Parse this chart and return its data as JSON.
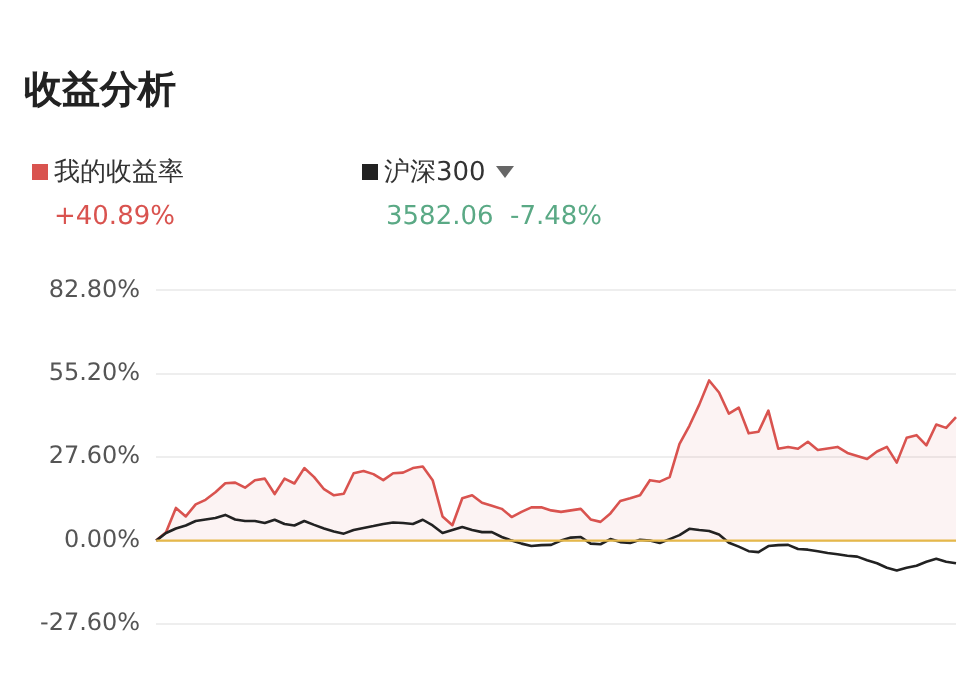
{
  "chart_data": {
    "type": "line",
    "title": "收益分析",
    "categories": [
      null,
      null,
      null,
      null,
      null,
      null,
      null,
      null,
      null,
      null,
      null,
      null,
      null,
      null,
      null,
      null,
      null,
      null,
      null,
      null,
      null,
      null,
      null,
      null,
      null,
      null,
      null,
      null,
      null,
      null,
      null,
      null,
      null,
      null,
      null,
      null,
      null,
      null,
      null,
      null,
      null,
      null,
      null,
      null,
      null,
      null,
      null,
      null,
      null,
      null,
      null,
      null,
      null,
      null,
      null,
      null,
      null,
      null,
      null,
      null,
      null,
      null,
      null,
      null,
      null,
      null,
      null,
      null,
      null,
      null,
      null,
      null,
      null,
      null,
      null,
      null,
      null,
      null,
      null,
      null,
      null,
      null
    ],
    "series": [
      {
        "name": "我的收益率",
        "type": "area",
        "color": "#d9534f",
        "values": [
          0,
          2.8,
          10.8,
          8,
          12,
          13.5,
          16,
          19,
          19.2,
          17.5,
          20,
          20.5,
          15.4,
          20.5,
          18.9,
          24,
          21,
          17,
          15,
          15.5,
          22.3,
          23,
          22,
          20,
          22.3,
          22.5,
          24,
          24.5,
          20,
          8,
          5.1,
          14,
          15,
          12.5,
          11.5,
          10.5,
          7.8,
          9.5,
          11,
          11,
          10,
          9.5,
          10,
          10.5,
          7,
          6.2,
          9,
          13.1,
          14,
          15,
          20,
          19.5,
          21,
          32,
          38,
          45,
          53,
          49,
          42,
          44,
          35.5,
          36,
          43,
          30.4,
          31,
          30.4,
          32.7,
          30,
          30.5,
          31,
          29,
          28,
          27,
          29.5,
          31,
          25.8,
          34,
          34.9,
          31.5,
          38.4,
          37.3,
          40.9
        ]
      },
      {
        "name": "沪深300",
        "type": "line",
        "color": "#222222",
        "values": [
          0,
          2.5,
          4,
          5,
          6.5,
          7,
          7.5,
          8.5,
          7,
          6.5,
          6.5,
          5.8,
          6.9,
          5.5,
          5,
          6.5,
          5.2,
          4,
          3,
          2.3,
          3.5,
          4.2,
          4.8,
          5.5,
          6,
          5.8,
          5.5,
          6.9,
          5,
          2.5,
          3.5,
          4.5,
          3.5,
          2.8,
          2.8,
          1.2,
          0,
          -1,
          -1.8,
          -1.5,
          -1.4,
          0,
          1,
          1.2,
          -1,
          -1.2,
          0.5,
          -0.5,
          -0.8,
          0.3,
          0,
          -0.8,
          0.5,
          1.8,
          3.9,
          3.5,
          3.2,
          2,
          -0.7,
          -2,
          -3.5,
          -3.8,
          -1.8,
          -1.5,
          -1.4,
          -2.8,
          -3,
          -3.5,
          -4.1,
          -4.5,
          -5,
          -5.3,
          -6.5,
          -7.5,
          -9,
          -9.9,
          -9,
          -8.3,
          -7,
          -6,
          -7,
          -7.5
        ]
      }
    ],
    "annotations": [
      "+40.89%",
      "3582.06",
      "-7.48%"
    ],
    "ylim": [
      -27.6,
      82.8
    ],
    "yticks": [
      {
        "value": -27.6,
        "label": "-27.60%"
      },
      {
        "value": 0,
        "label": "0.00%"
      },
      {
        "value": 27.6,
        "label": "27.60%"
      },
      {
        "value": 55.2,
        "label": "55.20%"
      },
      {
        "value": 82.8,
        "label": "82.80%"
      }
    ],
    "ref_lines": [
      {
        "axis": "y",
        "value": 0,
        "color": "#e6b84a"
      }
    ],
    "grid": "y",
    "legend": "top left",
    "marker": "none",
    "line_style": "solid"
  }
}
